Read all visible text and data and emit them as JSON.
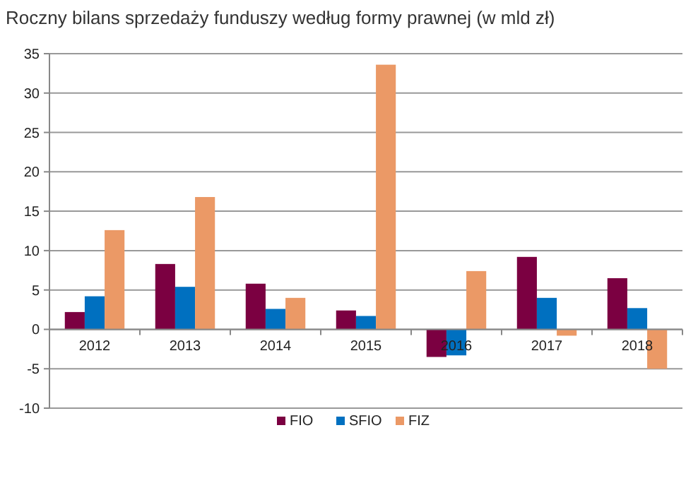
{
  "chart_data": {
    "type": "bar",
    "title": "Roczny bilans sprzedaży funduszy według formy prawnej (w mld zł)",
    "categories": [
      "2012",
      "2013",
      "2014",
      "2015",
      "2016",
      "2017",
      "2018"
    ],
    "series": [
      {
        "name": "FIO",
        "color": "#7b0041",
        "values": [
          2.2,
          8.3,
          5.8,
          2.4,
          -3.5,
          9.2,
          6.5
        ]
      },
      {
        "name": "SFIO",
        "color": "#0070c0",
        "values": [
          4.2,
          5.4,
          2.6,
          1.7,
          -3.3,
          4.0,
          2.7
        ]
      },
      {
        "name": "FIZ",
        "color": "#eb9966",
        "values": [
          12.6,
          16.8,
          4.0,
          33.6,
          7.4,
          -0.8,
          -5.0
        ]
      }
    ],
    "ylim": [
      -10,
      35
    ],
    "yticks": [
      -10,
      -5,
      0,
      5,
      10,
      15,
      20,
      25,
      30,
      35
    ],
    "grid": "y",
    "legend": "bottom"
  }
}
